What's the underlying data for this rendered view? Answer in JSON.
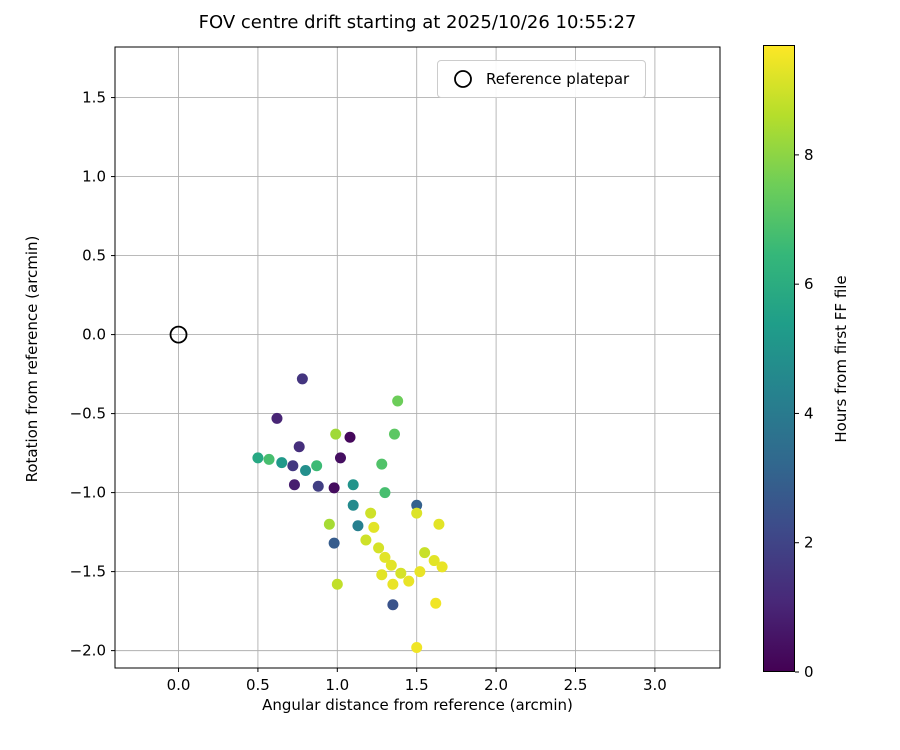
{
  "chart_data": {
    "type": "scatter",
    "title": "FOV centre drift starting at 2025/10/26 10:55:27",
    "xlabel": "Angular distance from reference (arcmin)",
    "ylabel": "Rotation from reference (arcmin)",
    "legend_label": "Reference platepar",
    "xlim": [
      -0.4,
      3.41
    ],
    "ylim": [
      -2.11,
      1.82
    ],
    "xticks": [
      0.0,
      0.5,
      1.0,
      1.5,
      2.0,
      2.5,
      3.0
    ],
    "yticks": [
      -2.0,
      -1.5,
      -1.0,
      -0.5,
      0.0,
      0.5,
      1.0,
      1.5
    ],
    "grid": true,
    "grid_color": "#b0b0b0",
    "reference_point": {
      "x": 0.0,
      "y": 0.0
    },
    "colorbar": {
      "label": "Hours from first FF file",
      "ticks": [
        0,
        2,
        4,
        6,
        8
      ],
      "vmin": 0,
      "vmax": 9.7,
      "colormap": "viridis",
      "viridis_stops": [
        "#440154",
        "#482878",
        "#3e4989",
        "#31688e",
        "#26828e",
        "#1f9e89",
        "#35b779",
        "#6ece58",
        "#b5de2b",
        "#fde725"
      ]
    },
    "point_fields": [
      "x",
      "y",
      "hours"
    ],
    "points": [
      [
        0.78,
        -0.28,
        1.5
      ],
      [
        0.62,
        -0.53,
        1.0
      ],
      [
        1.38,
        -0.42,
        7.5
      ],
      [
        0.99,
        -0.63,
        8.3
      ],
      [
        1.08,
        -0.65,
        0.2
      ],
      [
        0.76,
        -0.71,
        1.3
      ],
      [
        1.36,
        -0.63,
        7.2
      ],
      [
        1.02,
        -0.78,
        0.4
      ],
      [
        0.5,
        -0.78,
        5.8
      ],
      [
        0.57,
        -0.79,
        6.8
      ],
      [
        0.65,
        -0.81,
        5.2
      ],
      [
        0.72,
        -0.83,
        1.6
      ],
      [
        0.8,
        -0.86,
        4.8
      ],
      [
        0.87,
        -0.83,
        6.6
      ],
      [
        1.28,
        -0.82,
        7.0
      ],
      [
        0.73,
        -0.95,
        0.8
      ],
      [
        0.88,
        -0.96,
        1.8
      ],
      [
        0.98,
        -0.97,
        0.3
      ],
      [
        1.1,
        -0.95,
        5.0
      ],
      [
        1.3,
        -1.0,
        6.8
      ],
      [
        1.1,
        -1.08,
        4.6
      ],
      [
        1.5,
        -1.08,
        3.0
      ],
      [
        0.95,
        -1.2,
        8.4
      ],
      [
        1.21,
        -1.13,
        9.0
      ],
      [
        1.23,
        -1.22,
        9.3
      ],
      [
        1.5,
        -1.13,
        9.2
      ],
      [
        1.64,
        -1.2,
        9.3
      ],
      [
        1.13,
        -1.21,
        4.2
      ],
      [
        0.98,
        -1.32,
        2.8
      ],
      [
        1.18,
        -1.3,
        9.0
      ],
      [
        1.26,
        -1.35,
        9.1
      ],
      [
        1.3,
        -1.41,
        9.3
      ],
      [
        1.34,
        -1.46,
        9.3
      ],
      [
        1.55,
        -1.38,
        8.9
      ],
      [
        1.61,
        -1.43,
        9.3
      ],
      [
        1.66,
        -1.47,
        9.4
      ],
      [
        1.28,
        -1.52,
        9.3
      ],
      [
        1.4,
        -1.51,
        9.1
      ],
      [
        1.45,
        -1.56,
        9.4
      ],
      [
        1.52,
        -1.5,
        9.4
      ],
      [
        1.0,
        -1.58,
        8.8
      ],
      [
        1.35,
        -1.58,
        9.4
      ],
      [
        1.35,
        -1.71,
        2.5
      ],
      [
        1.62,
        -1.7,
        9.5
      ],
      [
        1.5,
        -1.98,
        9.5
      ]
    ]
  }
}
